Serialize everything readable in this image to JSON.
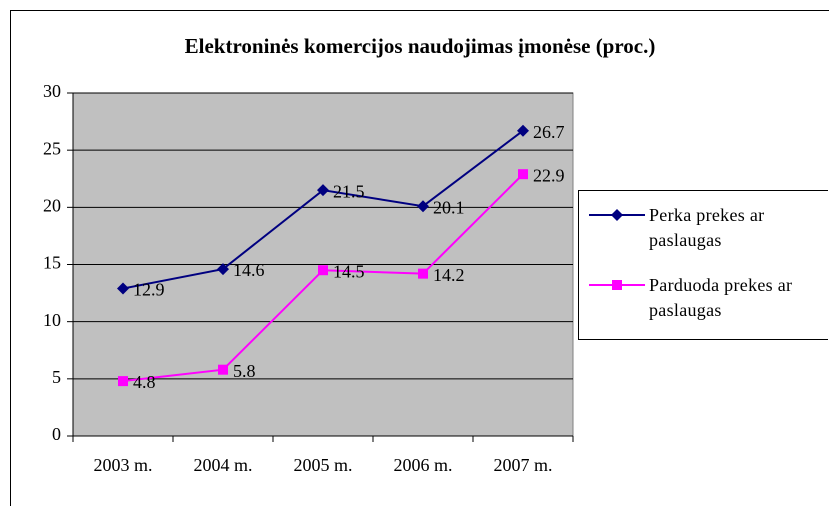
{
  "chart_data": {
    "type": "line",
    "title": "Elektroninės komercijos naudojimas įmonėse (proc.)",
    "categories": [
      "2003 m.",
      "2004 m.",
      "2005 m.",
      "2006 m.",
      "2007 m."
    ],
    "series": [
      {
        "name": "Perka prekes ar paslaugas",
        "color": "#000080",
        "marker": "diamond",
        "values": [
          12.9,
          14.6,
          21.5,
          20.1,
          26.7
        ]
      },
      {
        "name": "Parduoda prekes ar paslaugas",
        "color": "#ff00ff",
        "marker": "square",
        "values": [
          4.8,
          5.8,
          14.5,
          14.2,
          22.9
        ]
      }
    ],
    "ylim": [
      0,
      30
    ],
    "yticks": [
      0,
      5,
      10,
      15,
      20,
      25,
      30
    ],
    "grid": true,
    "legend": "right"
  }
}
